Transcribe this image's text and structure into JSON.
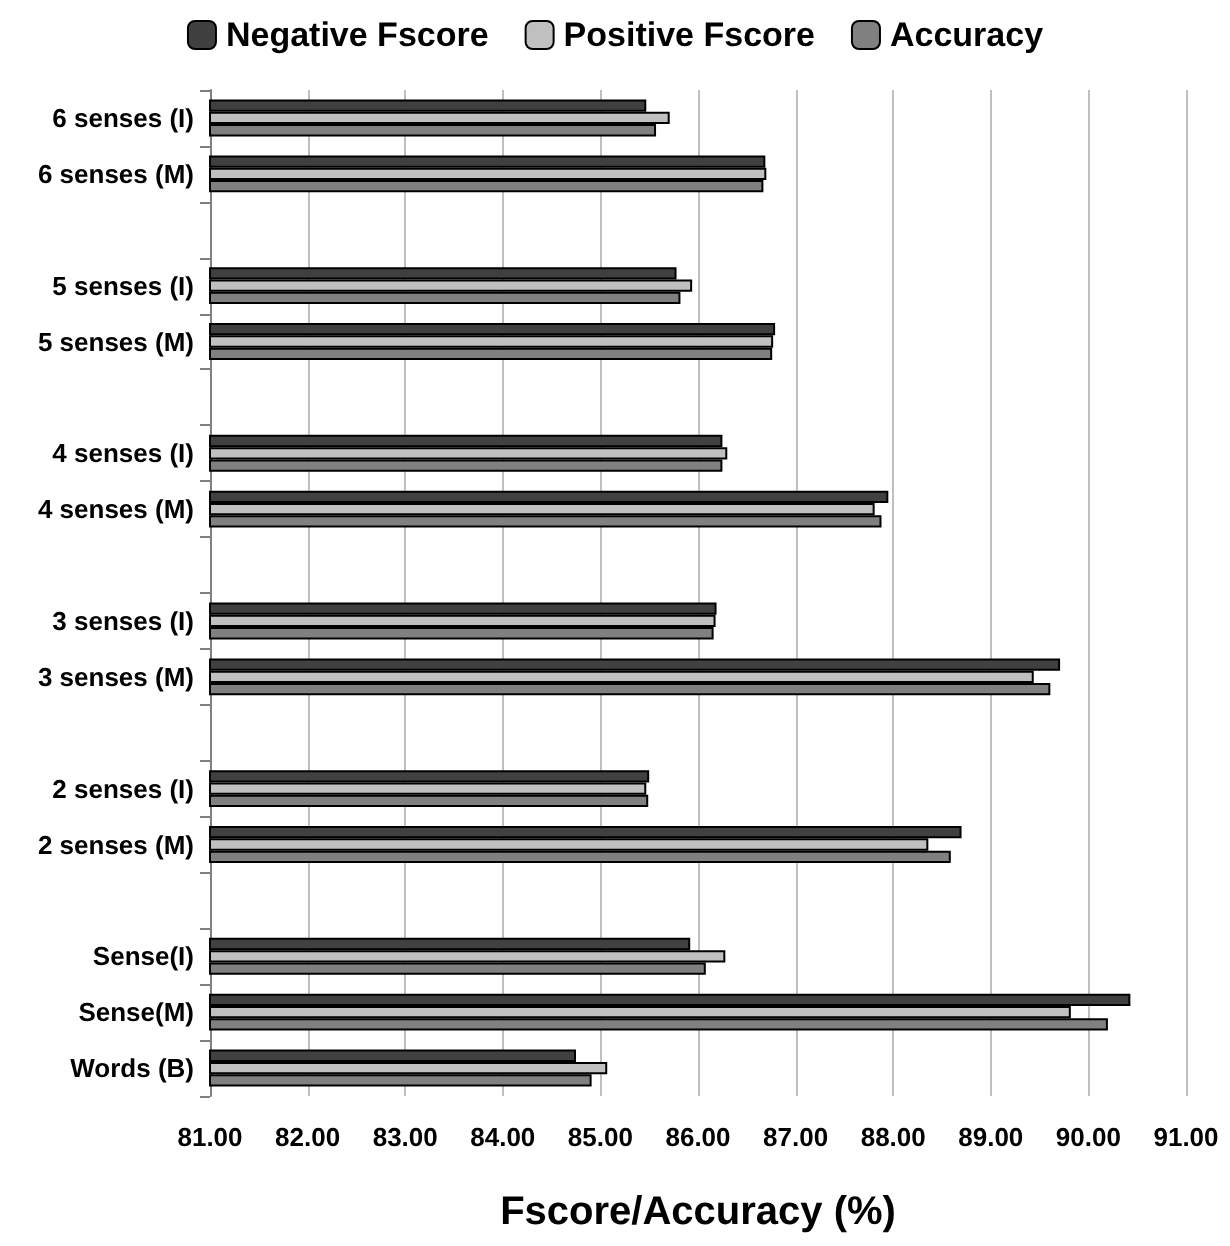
{
  "chart_data": {
    "type": "bar",
    "orientation": "horizontal",
    "xlabel": "Fscore/Accuracy (%)",
    "categories": [
      "6 senses (I)",
      "6 senses (M)",
      null,
      "5 senses (I)",
      "5 senses (M)",
      null,
      "4 senses (I)",
      "4 senses (M)",
      null,
      "3 senses (I)",
      "3 senses (M)",
      null,
      "2 senses (I)",
      "2 senses (M)",
      null,
      "Sense(I)",
      "Sense(M)",
      "Words (B)"
    ],
    "series": [
      {
        "name": "Negative Fscore",
        "color": "#404040",
        "values": [
          85.47,
          86.69,
          null,
          85.78,
          86.79,
          null,
          86.25,
          87.95,
          null,
          86.19,
          89.71,
          null,
          85.5,
          88.7,
          null,
          85.92,
          90.43,
          84.75
        ]
      },
      {
        "name": "Positive Fscore",
        "color": "#c0c0c0",
        "values": [
          85.71,
          86.7,
          null,
          85.94,
          86.77,
          null,
          86.3,
          87.81,
          null,
          86.18,
          89.44,
          null,
          85.47,
          88.36,
          null,
          86.28,
          89.82,
          85.07
        ]
      },
      {
        "name": "Accuracy",
        "color": "#808080",
        "values": [
          85.57,
          86.67,
          null,
          85.82,
          86.76,
          null,
          86.25,
          87.88,
          null,
          86.16,
          89.61,
          null,
          85.49,
          88.59,
          null,
          86.08,
          90.2,
          84.91
        ]
      }
    ],
    "xlim": [
      81,
      91
    ],
    "xticks": [
      {
        "value": 81,
        "label": "81.00"
      },
      {
        "value": 82,
        "label": "82.00"
      },
      {
        "value": 83,
        "label": "83.00"
      },
      {
        "value": 84,
        "label": "84.00"
      },
      {
        "value": 85,
        "label": "85.00"
      },
      {
        "value": 86,
        "label": "86.00"
      },
      {
        "value": 87,
        "label": "87.00"
      },
      {
        "value": 88,
        "label": "88.00"
      },
      {
        "value": 89,
        "label": "89.00"
      },
      {
        "value": 90,
        "label": "90.00"
      },
      {
        "value": 91,
        "label": "91.00"
      }
    ],
    "grid": "x",
    "legend": "top"
  }
}
